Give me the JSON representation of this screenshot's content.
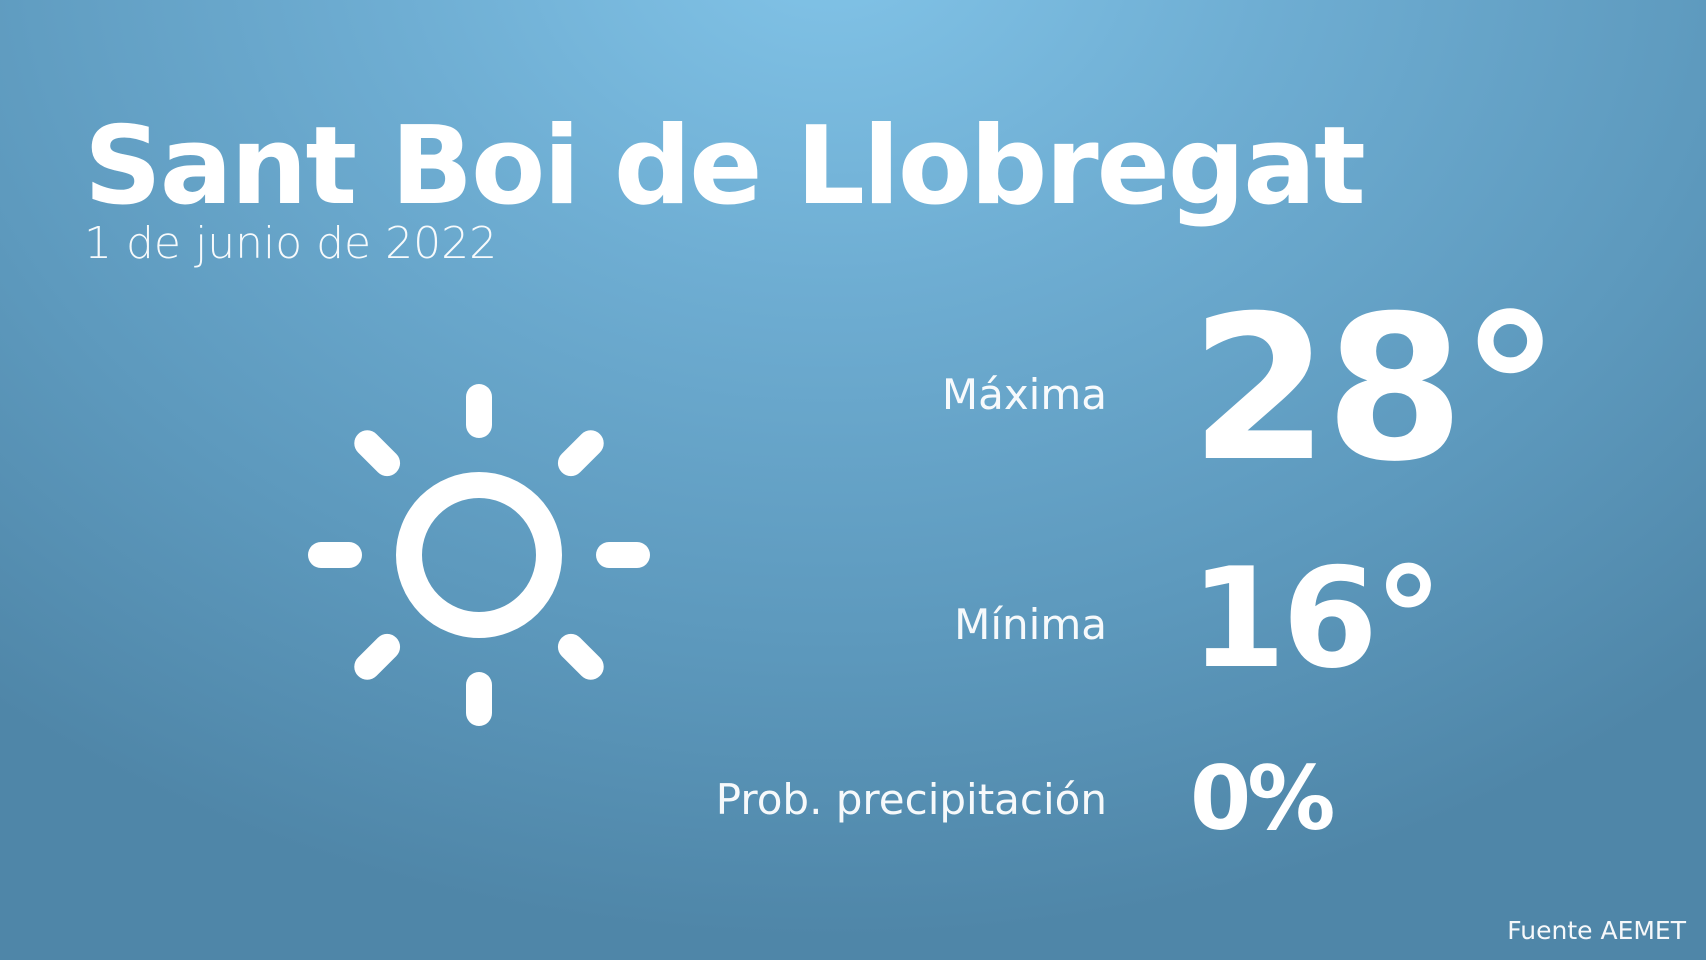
{
  "header": {
    "city": "Sant Boi de Llobregat",
    "date": "1 de junio de 2022"
  },
  "weather": {
    "icon": "sun-icon",
    "max_label": "Máxima",
    "max_value": "28°",
    "min_label": "Mínima",
    "min_value": "16°",
    "precip_label": "Prob. precipitación",
    "precip_value": "0%"
  },
  "footer": {
    "source": "Fuente AEMET"
  },
  "colors": {
    "background_top": "#82c4e8",
    "background_bottom": "#4f86a8",
    "text": "#ffffff"
  }
}
